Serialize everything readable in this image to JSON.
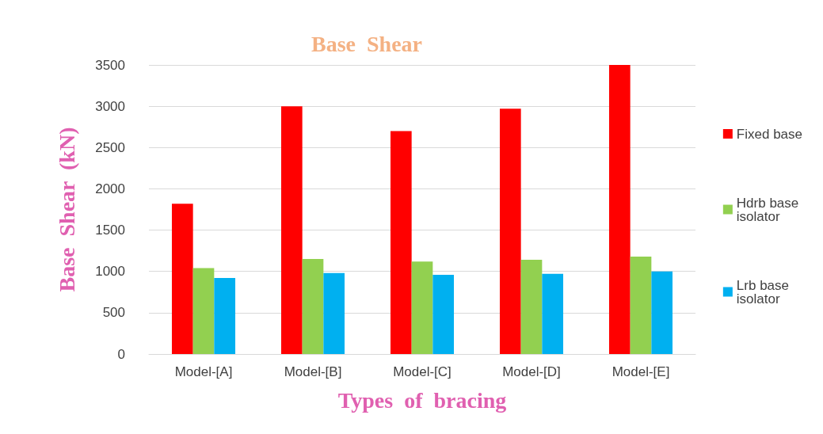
{
  "chart_data": {
    "type": "bar",
    "title": "Base  Shear",
    "xlabel": "Types  of  bracing",
    "ylabel": "Base  Shear  (kN)",
    "categories": [
      "Model-[A]",
      "Model-[B]",
      "Model-[C]",
      "Model-[D]",
      "Model-[E]"
    ],
    "series": [
      {
        "name": "Fixed base",
        "color": "#ff0000",
        "values": [
          1820,
          3000,
          2700,
          2970,
          3500
        ]
      },
      {
        "name": "Hdrb base isolator",
        "color": "#92d050",
        "values": [
          1040,
          1150,
          1120,
          1140,
          1180
        ]
      },
      {
        "name": "Lrb base isolator",
        "color": "#00b0f0",
        "values": [
          920,
          980,
          960,
          970,
          1000
        ]
      }
    ],
    "ylim": [
      0,
      3500
    ],
    "yticks": [
      0,
      500,
      1000,
      1500,
      2000,
      2500,
      3000,
      3500
    ],
    "grid": "y",
    "legend": "right"
  }
}
